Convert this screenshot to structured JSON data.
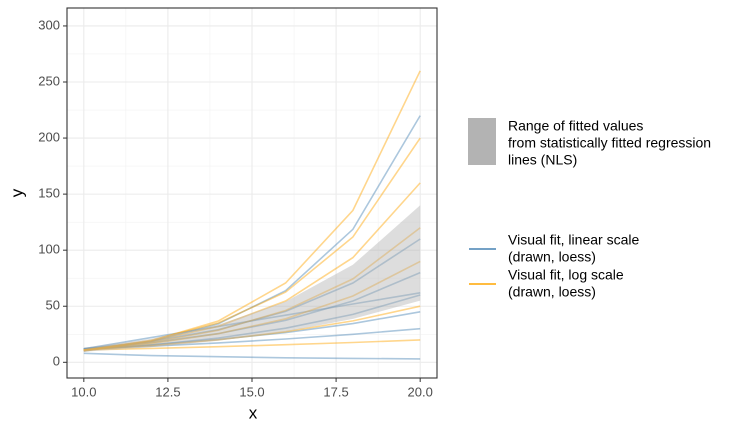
{
  "chart_data": {
    "type": "line",
    "x_label": "x",
    "y_label": "y",
    "x": [
      10,
      12,
      14,
      16,
      18,
      20
    ],
    "xlim": [
      9.5,
      20.5
    ],
    "xticks": [
      {
        "value": 10,
        "label": "10.0"
      },
      {
        "value": 12.5,
        "label": "12.5"
      },
      {
        "value": 15,
        "label": "15.0"
      },
      {
        "value": 17.5,
        "label": "17.5"
      },
      {
        "value": 20,
        "label": "20.0"
      }
    ],
    "ylim": [
      -14,
      316
    ],
    "yticks": [
      0,
      50,
      100,
      150,
      200,
      250,
      300
    ],
    "grid": true,
    "ribbon": {
      "name": [
        "Range of fitted values",
        " from statistically fitted regression",
        " lines (NLS)"
      ],
      "color": "#b3b3b3",
      "lower": [
        9.5,
        13.5,
        19.2,
        27.2,
        38.7,
        55
      ],
      "upper": [
        13,
        20.9,
        33.6,
        54.1,
        87,
        140
      ]
    },
    "groups": [
      {
        "name": [
          "Visual fit, linear scale",
          " (drawn, loess)"
        ],
        "color": "#4682b4",
        "lines": [
          [
            12,
            14.4,
            17.3,
            20.8,
            25,
            30
          ],
          [
            12,
            15.6,
            20.4,
            26.5,
            34.5,
            45
          ],
          [
            11,
            15.4,
            21.7,
            30.4,
            42.7,
            60
          ],
          [
            12,
            17.5,
            25.6,
            37.5,
            54.7,
            80
          ],
          [
            12,
            18.7,
            29.1,
            45.4,
            70.7,
            110
          ],
          [
            10,
            18.6,
            34.4,
            63.9,
            118.6,
            220
          ],
          [
            12,
            22,
            32,
            42,
            52,
            62
          ],
          [
            8,
            6,
            5,
            4,
            3.5,
            3
          ]
        ]
      },
      {
        "name": [
          "Visual fit, log scale",
          " (drawn, loess)"
        ],
        "color": "#ffa500",
        "lines": [
          [
            10,
            19.2,
            36.8,
            70.7,
            135.5,
            260
          ],
          [
            11,
            19.6,
            35.1,
            62.6,
            111.8,
            200
          ],
          [
            11,
            18.8,
            32.1,
            54.7,
            93.4,
            160
          ],
          [
            11,
            17.7,
            28.6,
            46.2,
            74.4,
            120
          ],
          [
            11,
            16.7,
            25.5,
            38.8,
            59.1,
            90
          ],
          [
            11,
            14.9,
            20.1,
            27.3,
            36.9,
            50
          ],
          [
            11,
            12.4,
            13.9,
            15.7,
            17.7,
            20
          ]
        ]
      }
    ]
  }
}
